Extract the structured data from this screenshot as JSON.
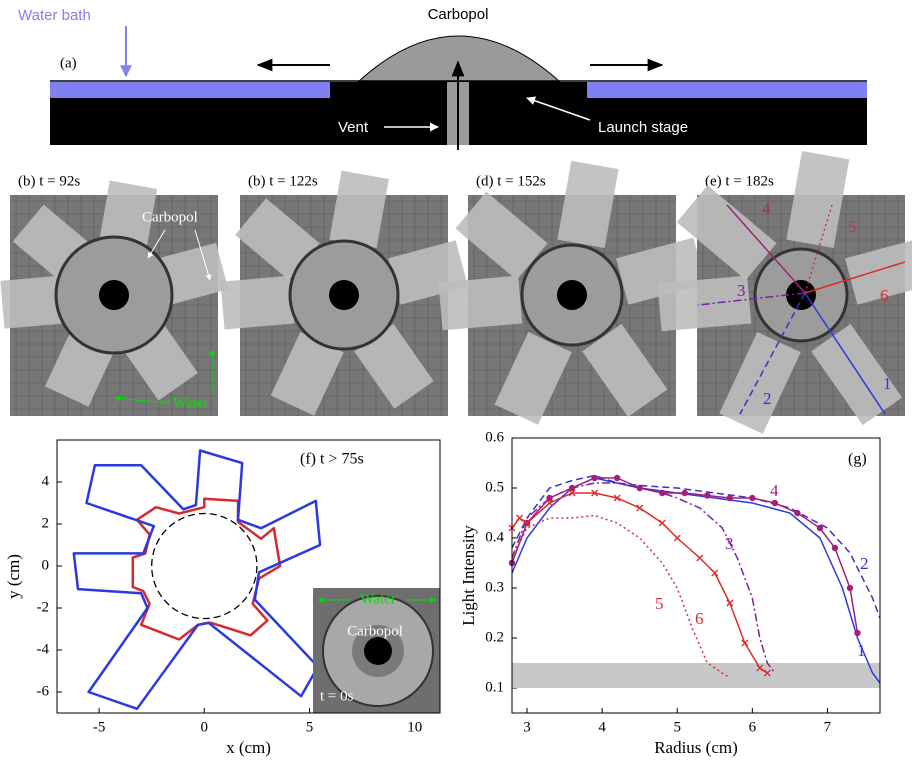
{
  "panel_a": {
    "label": "(a)",
    "water_bath": "Water bath",
    "carbopol": "Carbopol",
    "vent": "Vent",
    "launch_stage": "Launch stage"
  },
  "photos": [
    {
      "title": "(b) t = 92s",
      "labels": [
        "Carbopol",
        "Water"
      ]
    },
    {
      "title": "(b) t = 122s",
      "labels": []
    },
    {
      "title": "(d) t = 152s",
      "labels": []
    },
    {
      "title": "(e) t = 182s",
      "labels": [
        "1",
        "2",
        "3",
        "4",
        "5",
        "6"
      ]
    }
  ],
  "chart_data": [
    {
      "type": "contour",
      "label": "(f) t > 75s",
      "x_label": "x (cm)",
      "y_label": "y (cm)",
      "xlim": [
        -7,
        11.2
      ],
      "ylim": [
        -7,
        6
      ],
      "xticks": [
        -5,
        0,
        5,
        10
      ],
      "yticks": [
        -6,
        -4,
        -2,
        0,
        2,
        4
      ],
      "circle_radius": 2.5,
      "inset": {
        "water": "Water",
        "carbopol": "Carbopol",
        "time": "t = 0s"
      },
      "series": [
        {
          "color": "#d42a30",
          "x": [
            0.0,
            0.0,
            1.6,
            1.6,
            2.7,
            3.3,
            3.6,
            2.6,
            2.3,
            3.0,
            2.2,
            0.3,
            -0.3,
            -1.2,
            -3.0,
            -2.6,
            -2.9,
            -3.4,
            -3.4,
            -2.8,
            -2.6,
            -3.2,
            -2.3,
            -1.2
          ],
          "values": [
            2.8,
            3.2,
            3.1,
            2.1,
            1.3,
            1.8,
            0.0,
            -0.6,
            -1.8,
            -2.6,
            -3.3,
            -2.7,
            -2.8,
            -3.5,
            -2.8,
            -1.8,
            -1.2,
            -1.0,
            0.4,
            0.6,
            1.5,
            2.2,
            2.8,
            2.5
          ]
        },
        {
          "color": "#2a3ae0",
          "x": [
            -0.4,
            -0.2,
            1.8,
            1.6,
            2.7,
            5.3,
            5.5,
            2.6,
            2.4,
            5.4,
            4.6,
            0.2,
            -0.3,
            -3.2,
            -5.5,
            -2.7,
            -3.0,
            -6.0,
            -6.2,
            -2.9,
            -2.4,
            -5.6,
            -5.2,
            -3.0,
            -1.0
          ],
          "values": [
            2.9,
            5.5,
            4.9,
            2.2,
            1.8,
            3.1,
            1.0,
            -0.3,
            -1.6,
            -4.8,
            -6.2,
            -2.7,
            -2.8,
            -6.8,
            -6.0,
            -2.0,
            -1.3,
            -1.1,
            0.6,
            0.6,
            1.9,
            3.0,
            4.8,
            4.8,
            2.7
          ]
        }
      ]
    },
    {
      "type": "line",
      "label": "(g)",
      "x_label": "Radius (cm)",
      "y_label": "Light Intensity",
      "xlim": [
        2.8,
        7.7
      ],
      "ylim": [
        0.05,
        0.6
      ],
      "xticks": [
        3,
        4,
        5,
        6,
        7
      ],
      "yticks": [
        0.1,
        0.2,
        0.3,
        0.4,
        0.5,
        0.6
      ],
      "band": [
        0.1,
        0.15
      ],
      "band_color": "#c8c8c8",
      "series": [
        {
          "name": "1",
          "color": "#2a3ae0",
          "dash": "solid",
          "marker": "none",
          "x": [
            2.8,
            3.0,
            3.3,
            3.6,
            3.9,
            4.2,
            4.5,
            5.0,
            5.5,
            6.0,
            6.5,
            6.9,
            7.2,
            7.4,
            7.6,
            7.7
          ],
          "values": [
            0.33,
            0.4,
            0.46,
            0.5,
            0.52,
            0.51,
            0.5,
            0.49,
            0.48,
            0.47,
            0.45,
            0.4,
            0.3,
            0.2,
            0.13,
            0.11
          ]
        },
        {
          "name": "2",
          "color": "#3b30c8",
          "dash": "dashed",
          "marker": "none",
          "x": [
            2.8,
            3.0,
            3.3,
            3.6,
            3.9,
            4.2,
            4.5,
            5.0,
            5.5,
            6.0,
            6.5,
            7.0,
            7.3,
            7.6,
            7.7
          ],
          "values": [
            0.38,
            0.44,
            0.5,
            0.515,
            0.525,
            0.51,
            0.505,
            0.5,
            0.49,
            0.48,
            0.46,
            0.42,
            0.37,
            0.28,
            0.24
          ]
        },
        {
          "name": "3",
          "color": "#7a20a8",
          "dash": "dashdot",
          "marker": "none",
          "x": [
            2.8,
            3.0,
            3.3,
            3.6,
            3.9,
            4.2,
            4.5,
            4.8,
            5.0,
            5.3,
            5.6,
            5.8,
            6.0,
            6.1,
            6.2,
            6.3
          ],
          "values": [
            0.36,
            0.44,
            0.48,
            0.5,
            0.51,
            0.51,
            0.5,
            0.49,
            0.48,
            0.46,
            0.42,
            0.36,
            0.28,
            0.2,
            0.15,
            0.13
          ]
        },
        {
          "name": "4",
          "color": "#a3207a",
          "dash": "solid",
          "marker": "circle",
          "x": [
            2.8,
            3.0,
            3.3,
            3.6,
            3.9,
            4.2,
            4.5,
            4.8,
            5.1,
            5.4,
            5.7,
            6.0,
            6.3,
            6.6,
            6.9,
            7.1,
            7.3,
            7.4
          ],
          "values": [
            0.35,
            0.43,
            0.48,
            0.5,
            0.52,
            0.52,
            0.5,
            0.49,
            0.49,
            0.485,
            0.48,
            0.48,
            0.47,
            0.45,
            0.42,
            0.38,
            0.3,
            0.21
          ]
        },
        {
          "name": "5",
          "color": "#d03040",
          "dash": "dotted",
          "marker": "none",
          "x": [
            2.8,
            3.0,
            3.3,
            3.6,
            3.9,
            4.2,
            4.5,
            4.8,
            5.0,
            5.2,
            5.4,
            5.7
          ],
          "values": [
            0.36,
            0.42,
            0.44,
            0.44,
            0.445,
            0.43,
            0.4,
            0.35,
            0.3,
            0.22,
            0.15,
            0.12
          ]
        },
        {
          "name": "6",
          "color": "#e02828",
          "dash": "solid",
          "marker": "x",
          "x": [
            2.8,
            2.9,
            3.0,
            3.3,
            3.6,
            3.9,
            4.2,
            4.5,
            4.8,
            5.0,
            5.3,
            5.5,
            5.7,
            5.9,
            6.1,
            6.2
          ],
          "values": [
            0.42,
            0.44,
            0.43,
            0.47,
            0.49,
            0.49,
            0.48,
            0.46,
            0.43,
            0.4,
            0.36,
            0.33,
            0.27,
            0.19,
            0.14,
            0.13
          ]
        }
      ]
    }
  ]
}
